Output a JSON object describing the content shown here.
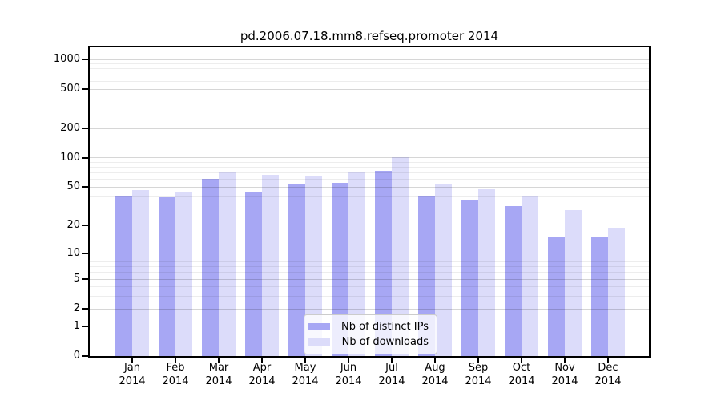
{
  "chart_data": {
    "type": "bar",
    "title": "pd.2006.07.18.mm8.refseq.promoter 2014",
    "categories": [
      "Jan",
      "Feb",
      "Mar",
      "Apr",
      "May",
      "Jun",
      "Jul",
      "Aug",
      "Sep",
      "Oct",
      "Nov",
      "Dec"
    ],
    "x_year_label": "2014",
    "series": [
      {
        "name": "Nb of distinct IPs",
        "color": "#a7a7f4",
        "values": [
          41,
          39,
          61,
          45,
          54,
          56,
          74,
          41,
          37,
          32,
          15,
          15
        ]
      },
      {
        "name": "Nb of downloads",
        "color": "#dcdcfa",
        "values": [
          47,
          45,
          73,
          67,
          64,
          73,
          102,
          54,
          48,
          40,
          29,
          19
        ]
      }
    ],
    "y_ticks": [
      1000,
      500,
      200,
      100,
      50,
      20,
      10,
      5,
      2,
      1,
      0
    ],
    "y_minor_gridlines": [
      3,
      4,
      6,
      7,
      8,
      9,
      30,
      40,
      60,
      70,
      80,
      90,
      300,
      400,
      600,
      700,
      800,
      900
    ],
    "y_scale": "log1p",
    "ylim": [
      0,
      1325
    ],
    "grid": true,
    "legend_position": "lower center",
    "axis_color": "#000000",
    "major_grid_color": "#d9d9d9",
    "minor_grid_color": "#ededed",
    "background_color": "#ffffff"
  }
}
